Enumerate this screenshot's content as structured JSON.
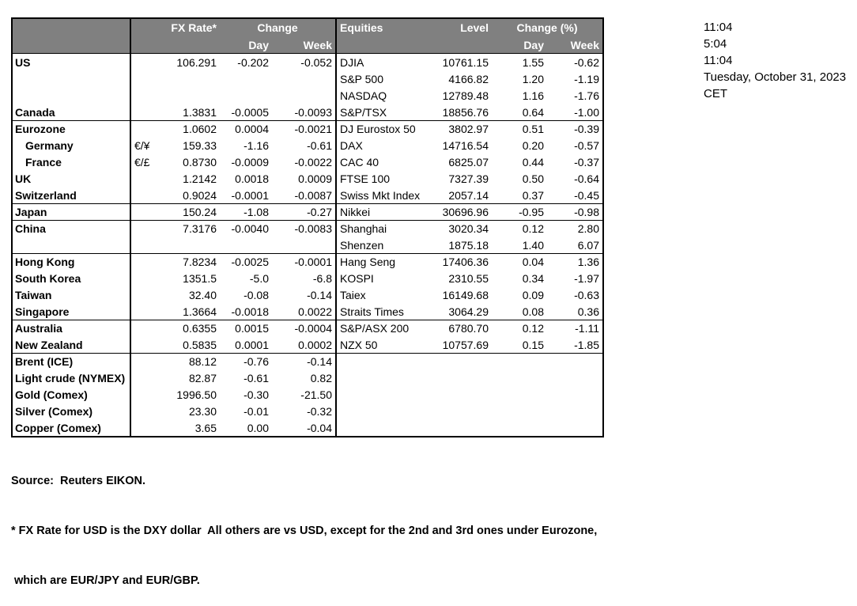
{
  "colors": {
    "header_bg": "#808080",
    "header_text": "#ffffff",
    "border": "#000000",
    "text": "#000000",
    "background": "#ffffff"
  },
  "table": {
    "fx_header": {
      "rate": "FX Rate*",
      "change": "Change",
      "day": "Day",
      "week": "Week"
    },
    "eq_header": {
      "title": "Equities",
      "level": "Level",
      "change": "Change (%)",
      "day": "Day",
      "week": "Week"
    },
    "rows": [
      {
        "label": "US",
        "pair": "",
        "rate": "106.291",
        "day": "-0.202",
        "week": "-0.052",
        "eq": "DJIA",
        "level": "10761.15",
        "eday": "1.55",
        "eweek": "-0.62",
        "section": false,
        "indent": false
      },
      {
        "label": "",
        "pair": "",
        "rate": "",
        "day": "",
        "week": "",
        "eq": "S&P 500",
        "level": "4166.82",
        "eday": "1.20",
        "eweek": "-1.19",
        "section": false,
        "indent": false
      },
      {
        "label": "",
        "pair": "",
        "rate": "",
        "day": "",
        "week": "",
        "eq": "NASDAQ",
        "level": "12789.48",
        "eday": "1.16",
        "eweek": "-1.76",
        "section": false,
        "indent": false
      },
      {
        "label": "Canada",
        "pair": "",
        "rate": "1.3831",
        "day": "-0.0005",
        "week": "-0.0093",
        "eq": "S&P/TSX",
        "level": "18856.76",
        "eday": "0.64",
        "eweek": "-1.00",
        "section": false,
        "indent": false
      },
      {
        "label": "Eurozone",
        "pair": "",
        "rate": "1.0602",
        "day": "0.0004",
        "week": "-0.0021",
        "eq": "DJ Eurostox 50",
        "level": "3802.97",
        "eday": "0.51",
        "eweek": "-0.39",
        "section": true,
        "indent": false
      },
      {
        "label": "Germany",
        "pair": "€/¥",
        "rate": "159.33",
        "day": "-1.16",
        "week": "-0.61",
        "eq": "DAX",
        "level": "14716.54",
        "eday": "0.20",
        "eweek": "-0.57",
        "section": false,
        "indent": true
      },
      {
        "label": "France",
        "pair": "€/£",
        "rate": "0.8730",
        "day": "-0.0009",
        "week": "-0.0022",
        "eq": "CAC 40",
        "level": "6825.07",
        "eday": "0.44",
        "eweek": "-0.37",
        "section": false,
        "indent": true
      },
      {
        "label": "UK",
        "pair": "",
        "rate": "1.2142",
        "day": "0.0018",
        "week": "0.0009",
        "eq": "FTSE 100",
        "level": "7327.39",
        "eday": "0.50",
        "eweek": "-0.64",
        "section": false,
        "indent": false
      },
      {
        "label": "Switzerland",
        "pair": "",
        "rate": "0.9024",
        "day": "-0.0001",
        "week": "-0.0087",
        "eq": "Swiss Mkt Index",
        "level": "2057.14",
        "eday": "0.37",
        "eweek": "-0.45",
        "section": false,
        "indent": false
      },
      {
        "label": "Japan",
        "pair": "",
        "rate": "150.24",
        "day": "-1.08",
        "week": "-0.27",
        "eq": "Nikkei",
        "level": "30696.96",
        "eday": "-0.95",
        "eweek": "-0.98",
        "section": true,
        "indent": false
      },
      {
        "label": "China",
        "pair": "",
        "rate": "7.3176",
        "day": "-0.0040",
        "week": "-0.0083",
        "eq": "Shanghai",
        "level": "3020.34",
        "eday": "0.12",
        "eweek": "2.80",
        "section": true,
        "indent": false
      },
      {
        "label": "",
        "pair": "",
        "rate": "",
        "day": "",
        "week": "",
        "eq": "Shenzen",
        "level": "1875.18",
        "eday": "1.40",
        "eweek": "6.07",
        "section": false,
        "indent": false
      },
      {
        "label": "Hong Kong",
        "pair": "",
        "rate": "7.8234",
        "day": "-0.0025",
        "week": "-0.0001",
        "eq": "Hang Seng",
        "level": "17406.36",
        "eday": "0.04",
        "eweek": "1.36",
        "section": true,
        "indent": false
      },
      {
        "label": "South Korea",
        "pair": "",
        "rate": "1351.5",
        "day": "-5.0",
        "week": "-6.8",
        "eq": "KOSPI",
        "level": "2310.55",
        "eday": "0.34",
        "eweek": "-1.97",
        "section": false,
        "indent": false
      },
      {
        "label": "Taiwan",
        "pair": "",
        "rate": "32.40",
        "day": "-0.08",
        "week": "-0.14",
        "eq": "Taiex",
        "level": "16149.68",
        "eday": "0.09",
        "eweek": "-0.63",
        "section": false,
        "indent": false
      },
      {
        "label": "Singapore",
        "pair": "",
        "rate": "1.3664",
        "day": "-0.0018",
        "week": "0.0022",
        "eq": "Straits Times",
        "level": "3064.29",
        "eday": "0.08",
        "eweek": "0.36",
        "section": false,
        "indent": false
      },
      {
        "label": "Australia",
        "pair": "",
        "rate": "0.6355",
        "day": "0.0015",
        "week": "-0.0004",
        "eq": "S&P/ASX  200",
        "level": "6780.70",
        "eday": "0.12",
        "eweek": "-1.11",
        "section": true,
        "indent": false
      },
      {
        "label": "New Zealand",
        "pair": "",
        "rate": "0.5835",
        "day": "0.0001",
        "week": "0.0002",
        "eq": "NZX 50",
        "level": "10757.69",
        "eday": "0.15",
        "eweek": "-1.85",
        "section": false,
        "indent": false
      },
      {
        "label": "Brent (ICE)",
        "pair": "",
        "rate": "88.12",
        "day": "-0.76",
        "week": "-0.14",
        "eq": "",
        "level": "",
        "eday": "",
        "eweek": "",
        "section": true,
        "indent": false
      },
      {
        "label": "Light crude (NYMEX)",
        "pair": "",
        "rate": "82.87",
        "day": "-0.61",
        "week": "0.82",
        "eq": "",
        "level": "",
        "eday": "",
        "eweek": "",
        "section": false,
        "indent": false
      },
      {
        "label": "Gold (Comex)",
        "pair": "",
        "rate": "1996.50",
        "day": "-0.30",
        "week": "-21.50",
        "eq": "",
        "level": "",
        "eday": "",
        "eweek": "",
        "section": false,
        "indent": false
      },
      {
        "label": "Silver (Comex)",
        "pair": "",
        "rate": "23.30",
        "day": "-0.01",
        "week": "-0.32",
        "eq": "",
        "level": "",
        "eday": "",
        "eweek": "",
        "section": false,
        "indent": false
      },
      {
        "label": "Copper (Comex)",
        "pair": "",
        "rate": "3.65",
        "day": "0.00",
        "week": "-0.04",
        "eq": "",
        "level": "",
        "eday": "",
        "eweek": "",
        "section": false,
        "indent": false
      }
    ]
  },
  "times": {
    "lines": [
      "11:04",
      "5:04",
      "11:04",
      "Tuesday, October 31, 2023",
      "CET"
    ]
  },
  "footer": {
    "source": "Source:  Reuters EIKON.",
    "note1": "* FX Rate for USD is the DXY dollar  All others are vs USD, except for the 2nd and 3rd ones under Eurozone,",
    "note2": " which are EUR/JPY and EUR/GBP."
  }
}
